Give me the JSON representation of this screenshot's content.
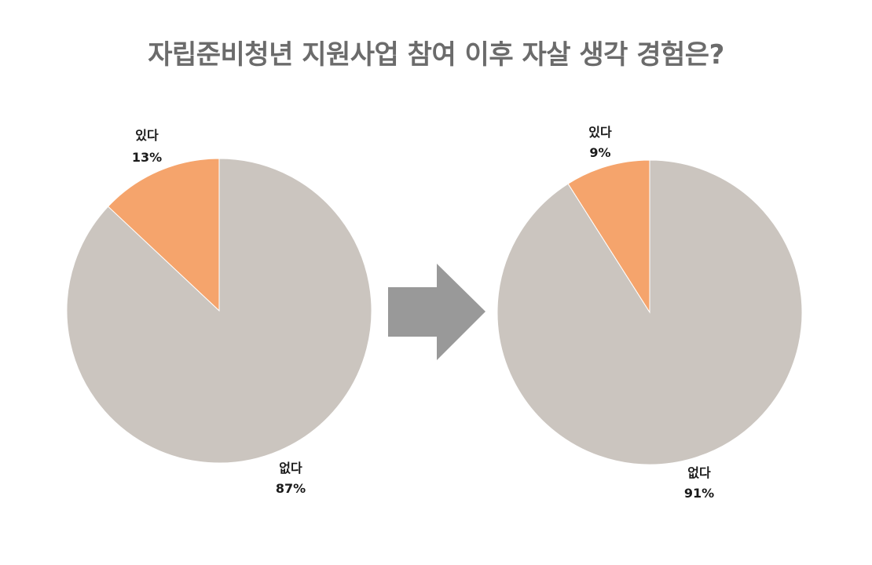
{
  "title": "자립준비청년 지원사업 참여 이후 자살 생각 경험은?",
  "colors": {
    "yes": "#f5a46c",
    "no": "#cbc5bf",
    "arrow": "#999999",
    "title": "#6b6b6b"
  },
  "chart_data": [
    {
      "type": "pie",
      "slices": [
        {
          "label": "있다",
          "value": 13,
          "value_label": "13%"
        },
        {
          "label": "없다",
          "value": 87,
          "value_label": "87%"
        }
      ]
    },
    {
      "type": "pie",
      "slices": [
        {
          "label": "있다",
          "value": 9,
          "value_label": "9%"
        },
        {
          "label": "없다",
          "value": 91,
          "value_label": "91%"
        }
      ]
    }
  ]
}
